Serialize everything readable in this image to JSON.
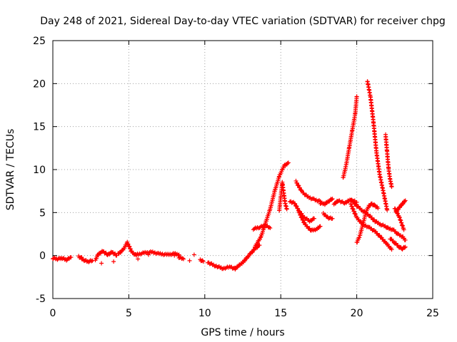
{
  "chart_data": {
    "type": "scatter",
    "title": "Day 248 of 2021, Sidereal Day-to-day VTEC variation (SDTVAR) for receiver chpg",
    "xlabel": "GPS time / hours",
    "ylabel": "SDTVAR / TECUs",
    "xlim": [
      0,
      25
    ],
    "ylim": [
      -5,
      25
    ],
    "xticks": [
      0,
      5,
      10,
      15,
      20,
      25
    ],
    "yticks": [
      -5,
      0,
      5,
      10,
      15,
      20,
      25
    ],
    "grid": true,
    "marker": "+",
    "color": "#ff0000",
    "segments": [
      {
        "x": [
          0.0,
          0.3,
          0.6,
          0.9,
          1.2
        ],
        "y": [
          -0.3,
          -0.4,
          -0.3,
          -0.5,
          -0.2
        ]
      },
      {
        "x": [
          1.7,
          2.0,
          2.3,
          2.6
        ],
        "y": [
          -0.1,
          -0.5,
          -0.7,
          -0.6
        ]
      },
      {
        "x": [
          2.8,
          3.0,
          3.3,
          3.6,
          3.9,
          4.2
        ],
        "y": [
          -0.5,
          0.2,
          0.5,
          0.1,
          0.4,
          0.0
        ]
      },
      {
        "x": [
          4.3,
          4.6,
          4.9,
          5.2,
          5.5
        ],
        "y": [
          0.2,
          0.6,
          1.5,
          0.4,
          0.0
        ]
      },
      {
        "x": [
          5.5,
          6.0,
          6.5,
          7.0,
          7.5,
          8.0,
          8.3
        ],
        "y": [
          0.1,
          0.3,
          0.4,
          0.2,
          0.1,
          0.2,
          0.1
        ]
      },
      {
        "x": [
          8.3,
          8.6
        ],
        "y": [
          -0.2,
          -0.4
        ]
      },
      {
        "x": [
          9.7,
          9.9
        ],
        "y": [
          -0.5,
          -0.7
        ]
      },
      {
        "x": [
          10.2,
          10.7,
          11.2,
          11.7,
          12.0
        ],
        "y": [
          -0.8,
          -1.2,
          -1.5,
          -1.3,
          -1.6
        ]
      },
      {
        "x": [
          12.0,
          12.5,
          13.0,
          13.3,
          13.6
        ],
        "y": [
          -1.5,
          -0.8,
          0.2,
          0.8,
          1.2
        ]
      },
      {
        "x": [
          13.3,
          13.7,
          14.0,
          14.3,
          14.6,
          14.9,
          15.2,
          15.5
        ],
        "y": [
          1.0,
          2.2,
          3.8,
          5.4,
          7.5,
          9.2,
          10.4,
          10.8
        ]
      },
      {
        "x": [
          13.2,
          13.6,
          14.0,
          14.3
        ],
        "y": [
          3.1,
          3.3,
          3.5,
          3.2
        ]
      },
      {
        "x": [
          14.9,
          15.0,
          15.1,
          15.2,
          15.3,
          15.4
        ],
        "y": [
          5.2,
          6.8,
          8.5,
          7.2,
          6.0,
          5.4
        ]
      },
      {
        "x": [
          15.6,
          15.9,
          16.2,
          16.5,
          16.9,
          17.2
        ],
        "y": [
          6.3,
          6.1,
          5.2,
          4.5,
          4.0,
          4.3
        ]
      },
      {
        "x": [
          16.0,
          16.4,
          16.8,
          17.2,
          17.6
        ],
        "y": [
          8.6,
          7.4,
          6.8,
          6.5,
          6.3
        ]
      },
      {
        "x": [
          16.2,
          16.6,
          17.0,
          17.4,
          17.6
        ],
        "y": [
          5.0,
          3.6,
          2.9,
          3.1,
          3.4
        ]
      },
      {
        "x": [
          17.6,
          17.9,
          18.2,
          18.4
        ],
        "y": [
          6.1,
          6.0,
          6.4,
          6.6
        ]
      },
      {
        "x": [
          17.8,
          18.1,
          18.4
        ],
        "y": [
          4.9,
          4.4,
          4.3
        ]
      },
      {
        "x": [
          18.5,
          18.8,
          19.2,
          19.6,
          20.0
        ],
        "y": [
          6.0,
          6.4,
          6.1,
          6.5,
          6.2
        ]
      },
      {
        "x": [
          19.1,
          19.3,
          19.5,
          19.7,
          19.9,
          20.0
        ],
        "y": [
          9.0,
          10.5,
          12.5,
          14.5,
          16.5,
          18.5
        ]
      },
      {
        "x": [
          19.6,
          20.0,
          20.4,
          20.8,
          21.2,
          21.6,
          22.0,
          22.3
        ],
        "y": [
          6.0,
          4.4,
          3.6,
          3.3,
          2.8,
          2.1,
          1.3,
          0.7
        ]
      },
      {
        "x": [
          19.6,
          20.0,
          20.4,
          20.8,
          21.2,
          21.6,
          22.0
        ],
        "y": [
          6.5,
          5.8,
          5.2,
          4.7,
          4.0,
          3.6,
          3.3
        ]
      },
      {
        "x": [
          20.0,
          20.2,
          20.4,
          20.6,
          20.8,
          21.0,
          21.2,
          21.4
        ],
        "y": [
          1.5,
          2.3,
          3.6,
          5.0,
          5.8,
          6.0,
          5.8,
          5.5
        ]
      },
      {
        "x": [
          20.7,
          20.9,
          21.1,
          21.3,
          21.5,
          21.8,
          22.0
        ],
        "y": [
          20.3,
          18.5,
          15.5,
          12.0,
          9.5,
          7.0,
          5.3
        ]
      },
      {
        "x": [
          21.9,
          22.0,
          22.1,
          22.2,
          22.3
        ],
        "y": [
          14.0,
          12.0,
          10.0,
          8.8,
          8.0
        ]
      },
      {
        "x": [
          22.0,
          22.4,
          22.7,
          23.0,
          23.2
        ],
        "y": [
          3.2,
          3.0,
          2.5,
          2.2,
          1.8
        ]
      },
      {
        "x": [
          22.2,
          22.5,
          22.8,
          23.0,
          23.2
        ],
        "y": [
          2.0,
          1.5,
          1.0,
          0.8,
          1.0
        ]
      },
      {
        "x": [
          22.6,
          22.8,
          23.0,
          23.2
        ],
        "y": [
          5.0,
          5.6,
          6.0,
          6.4
        ]
      },
      {
        "x": [
          22.5,
          22.8,
          23.1
        ],
        "y": [
          5.5,
          4.5,
          3.0
        ]
      }
    ],
    "isolated_points": [
      {
        "x": [
          1.9,
          3.2,
          4.0,
          5.6,
          6.3,
          8.0,
          9.0,
          9.3
        ],
        "y": [
          -0.2,
          -0.9,
          -0.7,
          -0.4,
          0.1,
          0.0,
          -0.6,
          0.1
        ]
      }
    ]
  }
}
